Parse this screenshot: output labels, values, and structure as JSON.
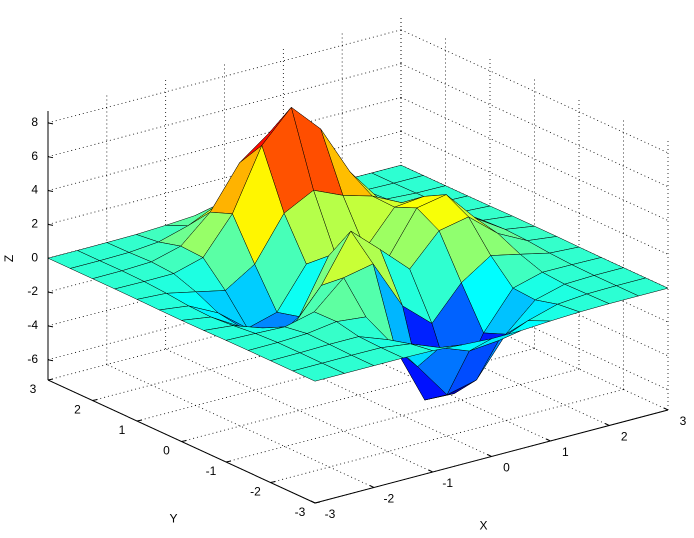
{
  "chart_data": {
    "type": "surface",
    "x": [
      -3,
      -2.5,
      -2,
      -1.5,
      -1,
      -0.5,
      0,
      0.5,
      1,
      1.5,
      2,
      2.5,
      3
    ],
    "y": [
      -3,
      -2.5,
      -2,
      -1.5,
      -1,
      -0.5,
      0,
      0.5,
      1,
      1.5,
      2,
      2.5,
      3
    ],
    "z": [
      [
        0,
        0,
        0,
        0,
        -0.03,
        -0.14,
        -0.24,
        -0.22,
        -0.11,
        -0.03,
        0,
        0,
        0
      ],
      [
        0,
        0,
        0.01,
        0,
        -0.23,
        -0.91,
        -1.57,
        -1.41,
        -0.69,
        -0.18,
        -0.03,
        0,
        0
      ],
      [
        0,
        0.01,
        0.05,
        0.05,
        -0.59,
        -2.64,
        -4.76,
        -4.35,
        -2.1,
        -0.53,
        -0.06,
        0,
        0
      ],
      [
        0,
        0.01,
        0.08,
        0.33,
        0.15,
        -2.18,
        -5.68,
        -5.76,
        -2.63,
        -0.44,
        0.04,
        0.03,
        0
      ],
      [
        -0.01,
        -0.06,
        -0.13,
        0.3,
        1.86,
        2.22,
        -0.72,
        -2.22,
        -0.27,
        0.88,
        0.5,
        0.11,
        0.01
      ],
      [
        -0.03,
        -0.2,
        -0.8,
        -1.21,
        0.8,
        3.55,
        2.0,
        0.39,
        2.2,
        2.56,
        1.12,
        0.24,
        0.03
      ],
      [
        -0.04,
        -0.3,
        -1.33,
        -2.77,
        -1.65,
        1.48,
        0.98,
        0.37,
        2.94,
        3.27,
        1.41,
        0.3,
        0.03
      ],
      [
        -0.03,
        -0.25,
        -1.12,
        -2.49,
        -2.0,
        0.39,
        0.46,
        0.38,
        2.38,
        2.56,
        1.09,
        0.23,
        0.03
      ],
      [
        -0.01,
        -0.11,
        -0.48,
        -0.86,
        0.23,
        2.79,
        3.69,
        2.93,
        2.43,
        1.58,
        0.58,
        0.11,
        0.01
      ],
      [
        0,
        -0.02,
        -0.01,
        0.48,
        2.61,
        6.19,
        7.99,
        6.25,
        3.25,
        1.18,
        0.29,
        0.05,
        0
      ],
      [
        0,
        0.01,
        0.08,
        0.55,
        2.1,
        4.56,
        5.86,
        4.57,
        2.21,
        0.68,
        0.13,
        0.02,
        0
      ],
      [
        0,
        0,
        0.03,
        0.19,
        0.69,
        1.47,
        1.88,
        1.47,
        0.7,
        0.21,
        0.04,
        0,
        0
      ],
      [
        0,
        0,
        0.01,
        0.03,
        0.11,
        0.23,
        0.3,
        0.23,
        0.11,
        0.03,
        0.01,
        0,
        0
      ]
    ],
    "colormap": "jet",
    "edge_color": "#000000",
    "xlabel": "X",
    "ylabel": "Y",
    "zlabel": "Z",
    "xlim": [
      -3,
      3
    ],
    "ylim": [
      -3,
      3
    ],
    "zlim": [
      -7.2,
      8.7
    ],
    "xticks": [
      -3,
      -2,
      -1,
      0,
      1,
      2,
      3
    ],
    "yticks": [
      -3,
      -2,
      -1,
      0,
      1,
      2,
      3
    ],
    "zticks": [
      -6,
      -4,
      -2,
      0,
      2,
      4,
      6,
      8
    ],
    "grid": true
  }
}
